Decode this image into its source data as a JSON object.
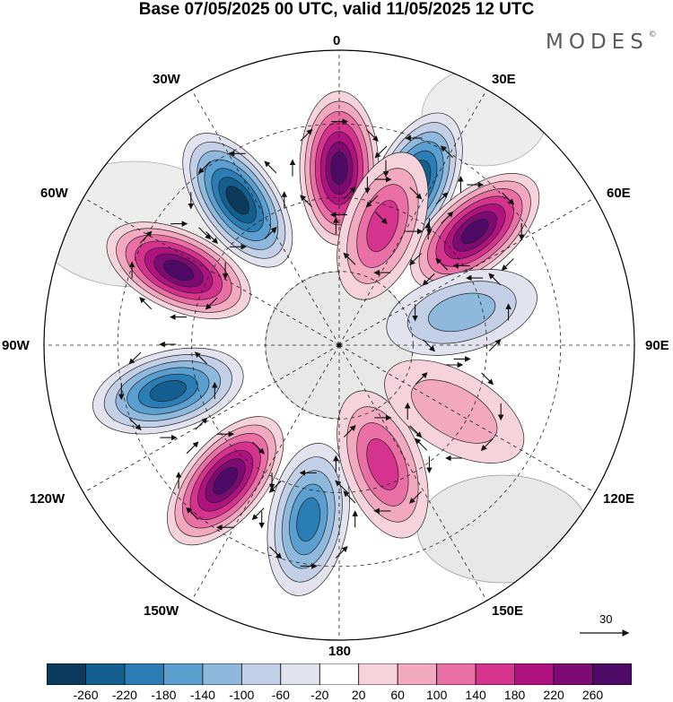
{
  "title": "Base 07/05/2025 00 UTC, valid 11/05/2025 12 UTC",
  "brand": "MODES",
  "brand_mark": "©",
  "map": {
    "projection": "south-polar-stereographic",
    "longitude_labels": [
      "0",
      "30E",
      "60E",
      "90E",
      "120E",
      "150E",
      "180",
      "150W",
      "120W",
      "90W",
      "60W",
      "30W"
    ],
    "reference_vector_label": "30",
    "anomaly_centers": [
      {
        "sign": "positive",
        "value": 260,
        "lon": 0
      },
      {
        "sign": "negative",
        "value": -260,
        "lon": 25
      },
      {
        "sign": "positive",
        "value": 260,
        "lon": 50
      },
      {
        "sign": "positive",
        "value": 140,
        "lon": 20
      },
      {
        "sign": "negative",
        "value": -100,
        "lon": 75
      },
      {
        "sign": "negative",
        "value": -260,
        "lon": 325
      },
      {
        "sign": "positive",
        "value": 260,
        "lon": 295
      },
      {
        "sign": "negative",
        "value": -220,
        "lon": 255
      },
      {
        "sign": "positive",
        "value": 260,
        "lon": 220
      },
      {
        "sign": "negative",
        "value": -180,
        "lon": 190
      },
      {
        "sign": "positive",
        "value": 140,
        "lon": 160
      },
      {
        "sign": "positive",
        "value": 60,
        "lon": 120
      }
    ]
  },
  "colorbar": {
    "ticks": [
      "-260",
      "-220",
      "-180",
      "-140",
      "-100",
      "-60",
      "-20",
      "20",
      "60",
      "100",
      "140",
      "180",
      "220",
      "260"
    ],
    "colors": [
      "#0b3a5c",
      "#135f8f",
      "#2a7db5",
      "#5a9fcf",
      "#8fb9dc",
      "#c2cfe6",
      "#e3e3f0",
      "#ffffff",
      "#f6d3dc",
      "#f2a9c0",
      "#ea6fa4",
      "#d6338e",
      "#b0127f",
      "#7e0a74",
      "#4e0a66"
    ]
  }
}
